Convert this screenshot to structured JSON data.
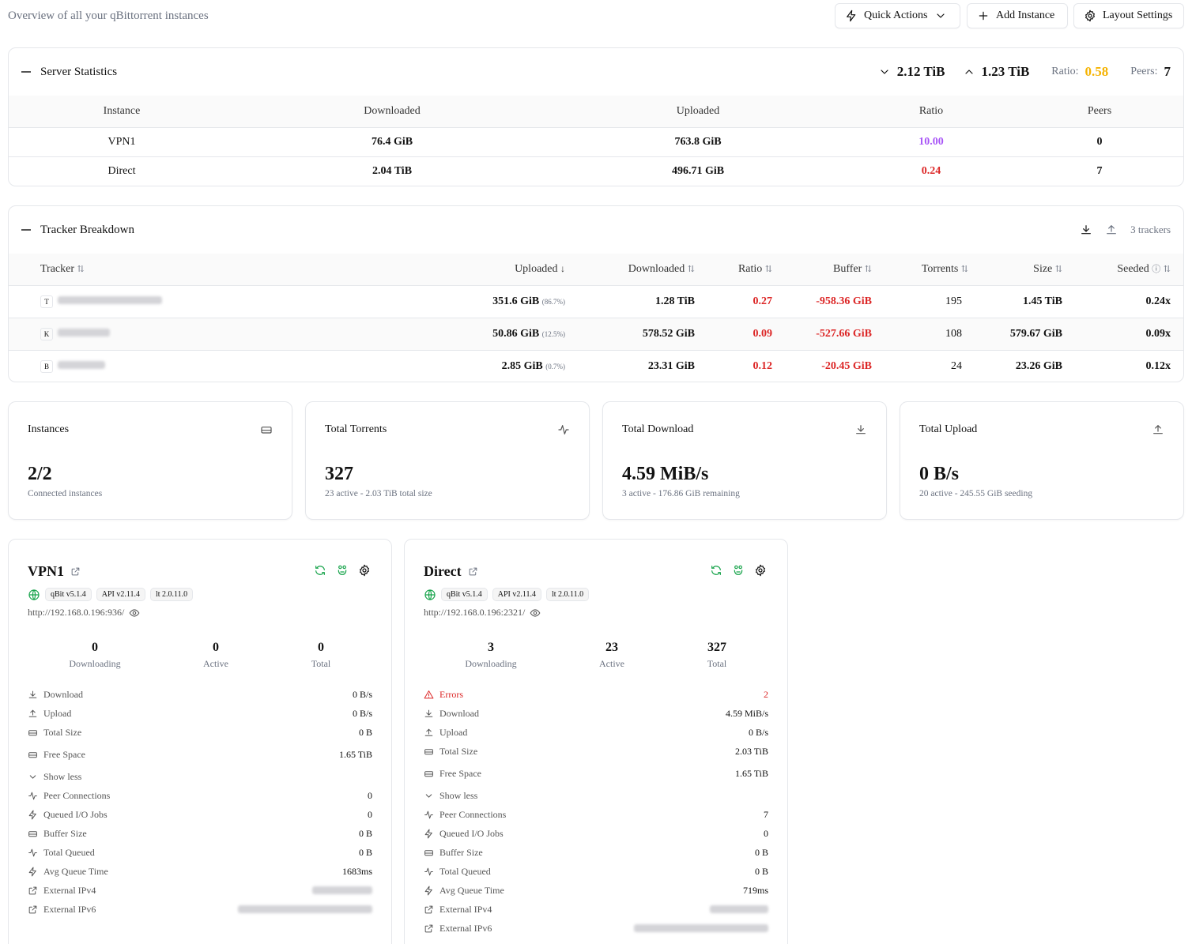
{
  "header": {
    "subtitle": "Overview of all your qBittorrent instances",
    "quick_actions": "Quick Actions",
    "add_instance": "Add Instance",
    "layout_settings": "Layout Settings"
  },
  "server_stats": {
    "title": "Server Statistics",
    "downloaded_total": "2.12 TiB",
    "uploaded_total": "1.23 TiB",
    "ratio_label": "Ratio:",
    "ratio_value": "0.58",
    "peers_label": "Peers:",
    "peers_value": "7",
    "columns": [
      "Instance",
      "Downloaded",
      "Uploaded",
      "Ratio",
      "Peers"
    ],
    "rows": [
      {
        "instance": "VPN1",
        "downloaded": "76.4 GiB",
        "uploaded": "763.8 GiB",
        "ratio": "10.00",
        "peers": "0"
      },
      {
        "instance": "Direct",
        "downloaded": "2.04 TiB",
        "uploaded": "496.71 GiB",
        "ratio": "0.24",
        "peers": "7"
      }
    ]
  },
  "tracker_breakdown": {
    "title": "Tracker Breakdown",
    "count_label": "3 trackers",
    "columns": [
      "Tracker",
      "Uploaded",
      "Downloaded",
      "Ratio",
      "Buffer",
      "Torrents",
      "Size",
      "Seeded"
    ],
    "rows": [
      {
        "initial": "T",
        "uploaded": "351.6 GiB",
        "uploaded_pct": "(86.7%)",
        "downloaded": "1.28 TiB",
        "ratio": "0.27",
        "buffer": "-958.36 GiB",
        "torrents": "195",
        "size": "1.45 TiB",
        "seeded": "0.24x"
      },
      {
        "initial": "K",
        "uploaded": "50.86 GiB",
        "uploaded_pct": "(12.5%)",
        "downloaded": "578.52 GiB",
        "ratio": "0.09",
        "buffer": "-527.66 GiB",
        "torrents": "108",
        "size": "579.67 GiB",
        "seeded": "0.09x"
      },
      {
        "initial": "B",
        "uploaded": "2.85 GiB",
        "uploaded_pct": "(0.7%)",
        "downloaded": "23.31 GiB",
        "ratio": "0.12",
        "buffer": "-20.45 GiB",
        "torrents": "24",
        "size": "23.26 GiB",
        "seeded": "0.12x"
      }
    ]
  },
  "summary": [
    {
      "label": "Instances",
      "value": "2/2",
      "sub": "Connected instances",
      "icon": "hard-drive-icon"
    },
    {
      "label": "Total Torrents",
      "value": "327",
      "sub": "23 active - 2.03 TiB total size",
      "icon": "activity-icon"
    },
    {
      "label": "Total Download",
      "value": "4.59 MiB/s",
      "sub": "3 active - 176.86 GiB remaining",
      "icon": "download-icon"
    },
    {
      "label": "Total Upload",
      "value": "0 B/s",
      "sub": "20 active - 245.55 GiB seeding",
      "icon": "upload-icon"
    }
  ],
  "instances": [
    {
      "name": "VPN1",
      "badges": [
        "qBit v5.1.4",
        "API v2.11.4",
        "lt 2.0.11.0"
      ],
      "url": "http://192.168.0.196:936/",
      "downloading": "0",
      "active": "0",
      "total": "0",
      "labels": {
        "downloading": "Downloading",
        "active": "Active",
        "total": "Total"
      },
      "download": "0 B/s",
      "upload": "0 B/s",
      "total_size": "0 B",
      "free_space": "1.65 TiB",
      "show_less": "Show less",
      "peer_connections": "0",
      "queued_io": "0",
      "buffer_size": "0 B",
      "total_queued": "0 B",
      "avg_queue": "1683ms"
    },
    {
      "name": "Direct",
      "badges": [
        "qBit v5.1.4",
        "API v2.11.4",
        "lt 2.0.11.0"
      ],
      "url": "http://192.168.0.196:2321/",
      "downloading": "3",
      "active": "23",
      "total": "327",
      "labels": {
        "downloading": "Downloading",
        "active": "Active",
        "total": "Total"
      },
      "errors_label": "Errors",
      "errors": "2",
      "download": "4.59 MiB/s",
      "upload": "0 B/s",
      "total_size": "2.03 TiB",
      "free_space": "1.65 TiB",
      "show_less": "Show less",
      "peer_connections": "7",
      "queued_io": "0",
      "buffer_size": "0 B",
      "total_queued": "0 B",
      "avg_queue": "719ms"
    }
  ],
  "row_labels": {
    "download": "Download",
    "upload": "Upload",
    "total_size": "Total Size",
    "free_space": "Free Space",
    "peer_connections": "Peer Connections",
    "queued_io": "Queued I/O Jobs",
    "buffer_size": "Buffer Size",
    "total_queued": "Total Queued",
    "avg_queue": "Avg Queue Time",
    "ext_ipv4": "External IPv4",
    "ext_ipv6": "External IPv6"
  },
  "colors": {
    "green": "#16a34a",
    "red": "#dc2626",
    "purple": "#a855f7",
    "amber": "#f5b301"
  }
}
